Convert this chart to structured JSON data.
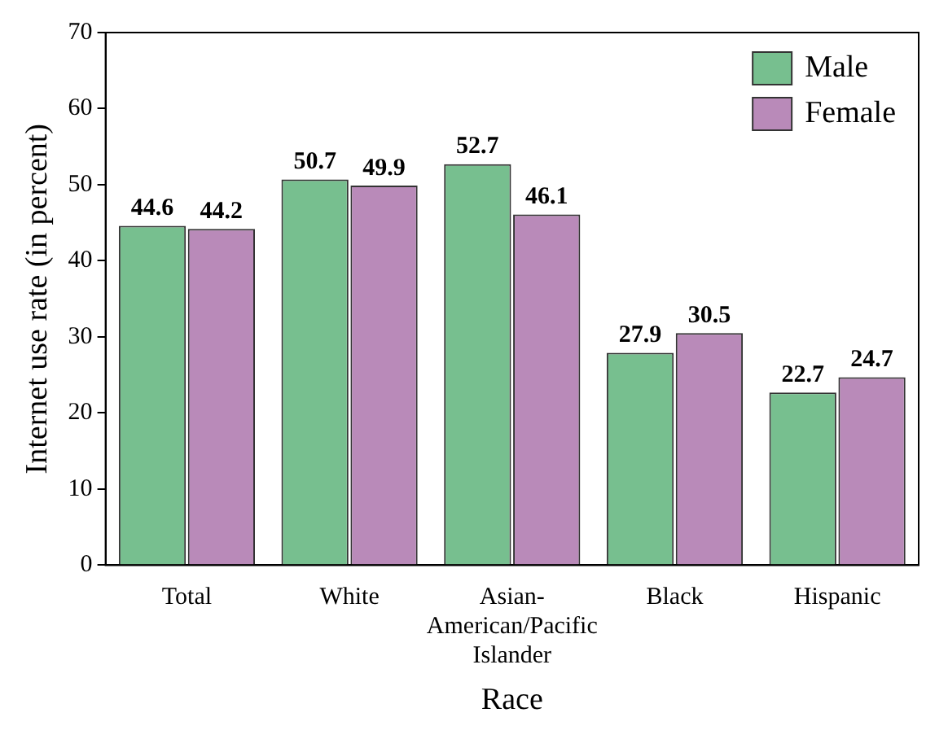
{
  "chart_data": {
    "type": "bar",
    "xlabel": "Race",
    "ylabel": "Internet use rate (in percent)",
    "categories": [
      "Total",
      "White",
      "Asian-American/Pacific Islander",
      "Black",
      "Hispanic"
    ],
    "series": [
      {
        "name": "Male",
        "color": "#77bf8f",
        "values": [
          44.6,
          50.7,
          52.7,
          27.9,
          22.7
        ]
      },
      {
        "name": "Female",
        "color": "#b98ab9",
        "values": [
          44.2,
          49.9,
          46.1,
          30.5,
          24.7
        ]
      }
    ],
    "ylim": [
      0,
      70
    ],
    "yticks": [
      0,
      10,
      20,
      30,
      40,
      50,
      60,
      70
    ],
    "grid": false,
    "legend": "top right",
    "data_labels": true
  }
}
